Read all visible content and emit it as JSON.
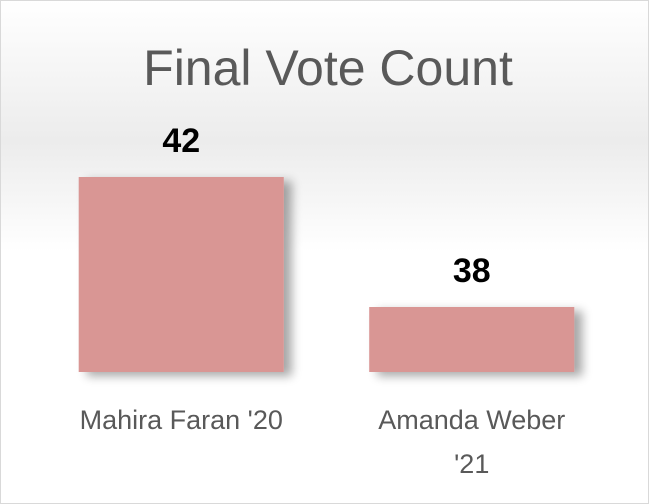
{
  "chart_data": {
    "type": "bar",
    "title": "Final Vote Count",
    "categories": [
      "Mahira Faran '20",
      "Amanda Weber '21"
    ],
    "values": [
      42,
      38
    ],
    "color": "#d99694",
    "ylim": [
      36,
      44
    ]
  }
}
